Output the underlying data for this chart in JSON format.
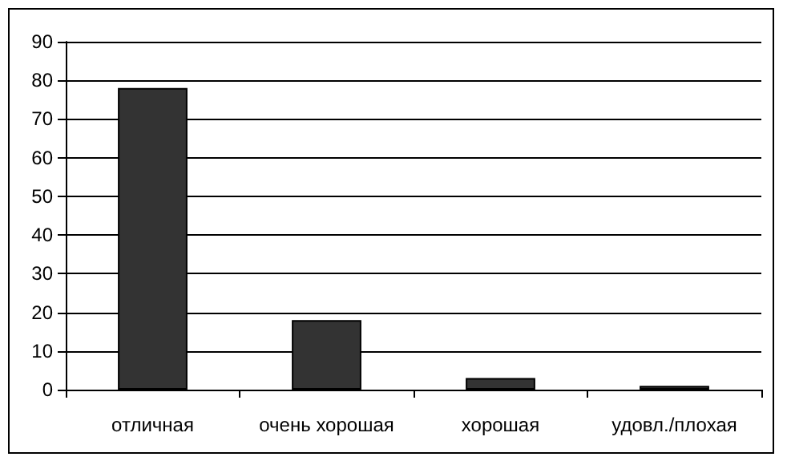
{
  "chart_data": {
    "type": "bar",
    "categories": [
      "отличная",
      "очень хорошая",
      "хорошая",
      "удовл./плохая"
    ],
    "values": [
      78,
      18,
      3,
      1
    ],
    "color": "#333333",
    "ylim": [
      0,
      90
    ],
    "yticks": [
      0,
      10,
      20,
      30,
      40,
      50,
      60,
      70,
      80,
      90
    ],
    "grid": "y"
  }
}
